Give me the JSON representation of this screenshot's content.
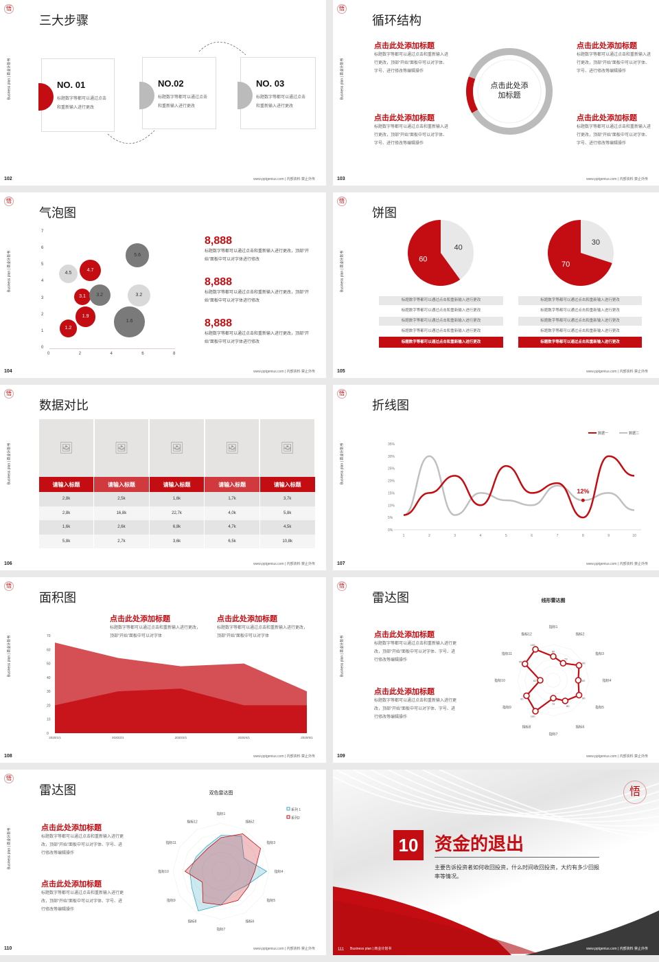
{
  "common": {
    "side_text": "Business plan | 商业计划书",
    "footer": "www.pptgenius.com | 内部资料 禁止外传",
    "logo": "悟",
    "placeholder_title": "点击此处添加标题",
    "body_text": "标题数字等都可以通过点击和重新输入进行更改，顶部“开始”面板中可以对字体、字号、进行修改等编辑操作"
  },
  "colors": {
    "accent": "#c40d12",
    "gray": "#c8c8c8",
    "dark_gray": "#7a7a7a"
  },
  "slides": {
    "s102": {
      "num": "102",
      "title": "三大步骤",
      "cards": [
        {
          "no": "NO. 01",
          "text": "标题数字等都可以通过点击和重新输入进行更改"
        },
        {
          "no": "NO.02",
          "text": "标题数字等都可以通过点击和重新输入进行更改"
        },
        {
          "no": "NO. 03",
          "text": "标题数字等都可以通过点击和重新输入进行更改"
        }
      ]
    },
    "s103": {
      "num": "103",
      "title": "循环结构",
      "center": "点击此处添加标题",
      "blocks": [
        {
          "h": "点击此处添加标题",
          "t": "标题数字等都可以通过点击和重新输入进行更改，顶部“开始”面板中可以对字体、字号、进行修改等编辑操作"
        },
        {
          "h": "点击此处添加标题",
          "t": "标题数字等都可以通过点击和重新输入进行更改，顶部“开始”面板中可以对字体、字号、进行修改等编辑操作"
        },
        {
          "h": "点击此处添加标题",
          "t": "标题数字等都可以通过点击和重新输入进行更改，顶部“开始”面板中可以对字体、字号、进行修改等编辑操作"
        },
        {
          "h": "点击此处添加标题",
          "t": "标题数字等都可以通过点击和重新输入进行更改，顶部“开始”面板中可以对字体、字号、进行修改等编辑操作"
        }
      ]
    },
    "s104": {
      "num": "104",
      "title": "气泡图",
      "stats": [
        {
          "n": "8,888",
          "t": "标题数字等都可以通过点击和重新输入进行更改，顶部“开始”面板中可以对字体进行修改"
        },
        {
          "n": "8,888",
          "t": "标题数字等都可以通过点击和重新输入进行更改，顶部“开始”面板中可以对字体进行修改"
        },
        {
          "n": "8,888",
          "t": "标题数字等都可以通过点击和重新输入进行更改，顶部“开始”面板中可以对字体进行修改"
        }
      ]
    },
    "s105": {
      "num": "105",
      "title": "饼图",
      "rows": [
        "标题数字等都可以通过点击和重新输入进行更改",
        "标题数字等都可以通过点击和重新输入进行更改",
        "标题数字等都可以通过点击和重新输入进行更改",
        "标题数字等都可以通过点击和重新输入进行更改",
        "标题数字等都可以通过点击和重新输入进行更改"
      ]
    },
    "s106": {
      "num": "106",
      "title": "数据对比",
      "headers": [
        "请输入标题",
        "请输入标题",
        "请输入标题",
        "请输入标题",
        "请输入标题"
      ],
      "rows": [
        [
          "2,8k",
          "2,5k",
          "1,6k",
          "1,7k",
          "3,7k"
        ],
        [
          "2,8k",
          "16,8k",
          "22,7k",
          "4,0k",
          "5,8k"
        ],
        [
          "1,6k",
          "2,6k",
          "6,8k",
          "4,7k",
          "4,5k"
        ],
        [
          "5,8k",
          "2,7k",
          "3,6k",
          "6,5k",
          "10,8k"
        ]
      ]
    },
    "s107": {
      "num": "107",
      "title": "折线图"
    },
    "s108": {
      "num": "108",
      "title": "面积图",
      "blocks": [
        {
          "h": "点击此处添加标题",
          "t": "标题数字等都可以通过点击和重新输入进行更改，顶部“开始”面板中可以对字体"
        },
        {
          "h": "点击此处添加标题",
          "t": "标题数字等都可以通过点击和重新输入进行更改，顶部“开始”面板中可以对字体"
        }
      ]
    },
    "s109": {
      "num": "109",
      "title": "雷达图",
      "blocks": [
        {
          "h": "点击此处添加标题",
          "t": "标题数字等都可以通过点击和重新输入进行更改，顶部“开始”面板中可以对字体、字号、进行修改等编辑操作"
        },
        {
          "h": "点击此处添加标题",
          "t": "标题数字等都可以通过点击和重新输入进行更改，顶部“开始”面板中可以对字体、字号、进行修改等编辑操作"
        }
      ]
    },
    "s110": {
      "num": "110",
      "title": "雷达图",
      "blocks": [
        {
          "h": "点击此处添加标题",
          "t": "标题数字等都可以通过点击和重新输入进行更改，顶部“开始”面板中可以对字体、字号、进行修改等编辑操作"
        },
        {
          "h": "点击此处添加标题",
          "t": "标题数字等都可以通过点击和重新输入进行更改，顶部“开始”面板中可以对字体、字号、进行修改等编辑操作"
        }
      ]
    },
    "s111": {
      "num": "111",
      "section_no": "10",
      "title": "资金的退出",
      "desc": "主要告诉投资者如何收回投资，什么时间收回投资，大约有多少回报率等情况。",
      "side_text": "Business plan | 商业计划书"
    }
  },
  "chart_data": [
    {
      "type": "scatter",
      "subtype": "bubble",
      "xlim": [
        0,
        8
      ],
      "ylim": [
        0,
        7
      ],
      "xticks": [
        0,
        2,
        4,
        6,
        8
      ],
      "yticks": [
        0,
        1,
        2,
        3,
        4,
        5,
        6,
        7
      ],
      "points": [
        {
          "x": 1.2,
          "y": 1.2,
          "label": "1.2",
          "size": 1.2,
          "color": "#c40d12"
        },
        {
          "x": 2.3,
          "y": 1.9,
          "label": "1.9",
          "size": 1.9,
          "color": "#c40d12"
        },
        {
          "x": 2.1,
          "y": 3.1,
          "label": "3.1",
          "size": 1.0,
          "color": "#c40d12"
        },
        {
          "x": 2.6,
          "y": 4.7,
          "label": "4.7",
          "size": 2.2,
          "color": "#c40d12"
        },
        {
          "x": 1.2,
          "y": 4.5,
          "label": "4.5",
          "size": 1.6,
          "color": "#d9d9d9"
        },
        {
          "x": 5.7,
          "y": 3.2,
          "label": "3.2",
          "size": 2.4,
          "color": "#d9d9d9"
        },
        {
          "x": 3.2,
          "y": 3.2,
          "label": "3.2",
          "size": 2.2,
          "color": "#7a7a7a"
        },
        {
          "x": 5.6,
          "y": 5.6,
          "label": "5.6",
          "size": 2.8,
          "color": "#7a7a7a"
        },
        {
          "x": 5.1,
          "y": 1.6,
          "label": "1.6",
          "size": 4.5,
          "color": "#7a7a7a"
        }
      ]
    },
    {
      "type": "pie",
      "values": [
        40,
        60
      ],
      "labels": [
        "40",
        "60"
      ],
      "colors": [
        "#e8e8e8",
        "#c40d12"
      ]
    },
    {
      "type": "pie",
      "values": [
        30,
        70
      ],
      "labels": [
        "30",
        "70"
      ],
      "colors": [
        "#e8e8e8",
        "#c40d12"
      ]
    },
    {
      "type": "line",
      "x": [
        "1",
        "2",
        "3",
        "4",
        "5",
        "6",
        "7",
        "8",
        "9",
        "10"
      ],
      "ylim": [
        0,
        35
      ],
      "yticks": [
        "0%",
        "5%",
        "10%",
        "15%",
        "20%",
        "25%",
        "30%",
        "35%"
      ],
      "series": [
        {
          "name": "数据一",
          "values": [
            6,
            15,
            22,
            10,
            26,
            15,
            19,
            5,
            30,
            22
          ],
          "color": "#c40d12"
        },
        {
          "name": "数据二",
          "values": [
            6,
            30,
            6,
            15,
            12,
            10,
            18,
            12,
            15,
            8
          ],
          "color": "#c0c0c0"
        }
      ],
      "annotation": {
        "x": "8",
        "value": 12,
        "text": "12%"
      }
    },
    {
      "type": "area",
      "categories": [
        "2020/1/1",
        "2020/2/1",
        "2020/3/1",
        "2020/4/1",
        "2020/5/1"
      ],
      "ylim": [
        0,
        70
      ],
      "yticks": [
        "0",
        "10",
        "20",
        "30",
        "40",
        "50",
        "60",
        "70"
      ],
      "series": [
        {
          "values": [
            65,
            54,
            48,
            50,
            30
          ],
          "color": "#d55055"
        },
        {
          "values": [
            20,
            30,
            32,
            20,
            20
          ],
          "color": "#c8151b"
        }
      ]
    },
    {
      "type": "radar",
      "title": "线形雷达图",
      "axes": [
        "指标1",
        "指标2",
        "指标3",
        "指标4",
        "指标5",
        "指标6",
        "指标7",
        "指标8",
        "指标9",
        "指标10",
        "指标11",
        "指标12"
      ],
      "values": [
        80,
        73,
        90,
        82,
        90,
        80,
        70,
        100,
        92,
        62,
        95,
        100
      ],
      "value_labels": [
        "80",
        "73",
        "90",
        "82",
        "90",
        "80",
        "70",
        "100",
        "92",
        "62",
        "95",
        "100"
      ],
      "color": "#c40d12"
    },
    {
      "type": "radar",
      "title": "双色雷达图",
      "axes": [
        "指标1",
        "指标2",
        "指标3",
        "指标4",
        "指标5",
        "指标6",
        "指标7",
        "指标8",
        "指标9",
        "指标10",
        "指标11",
        "指标12"
      ],
      "series": [
        {
          "name": "系列 1",
          "values": [
            75,
            85,
            55,
            95,
            60,
            50,
            70,
            95,
            70,
            65,
            60,
            60
          ],
          "color": "#39a9c4"
        },
        {
          "name": "系列2",
          "values": [
            70,
            90,
            95,
            70,
            65,
            70,
            70,
            75,
            45,
            75,
            55,
            55
          ],
          "color": "#c40d12"
        }
      ]
    }
  ]
}
